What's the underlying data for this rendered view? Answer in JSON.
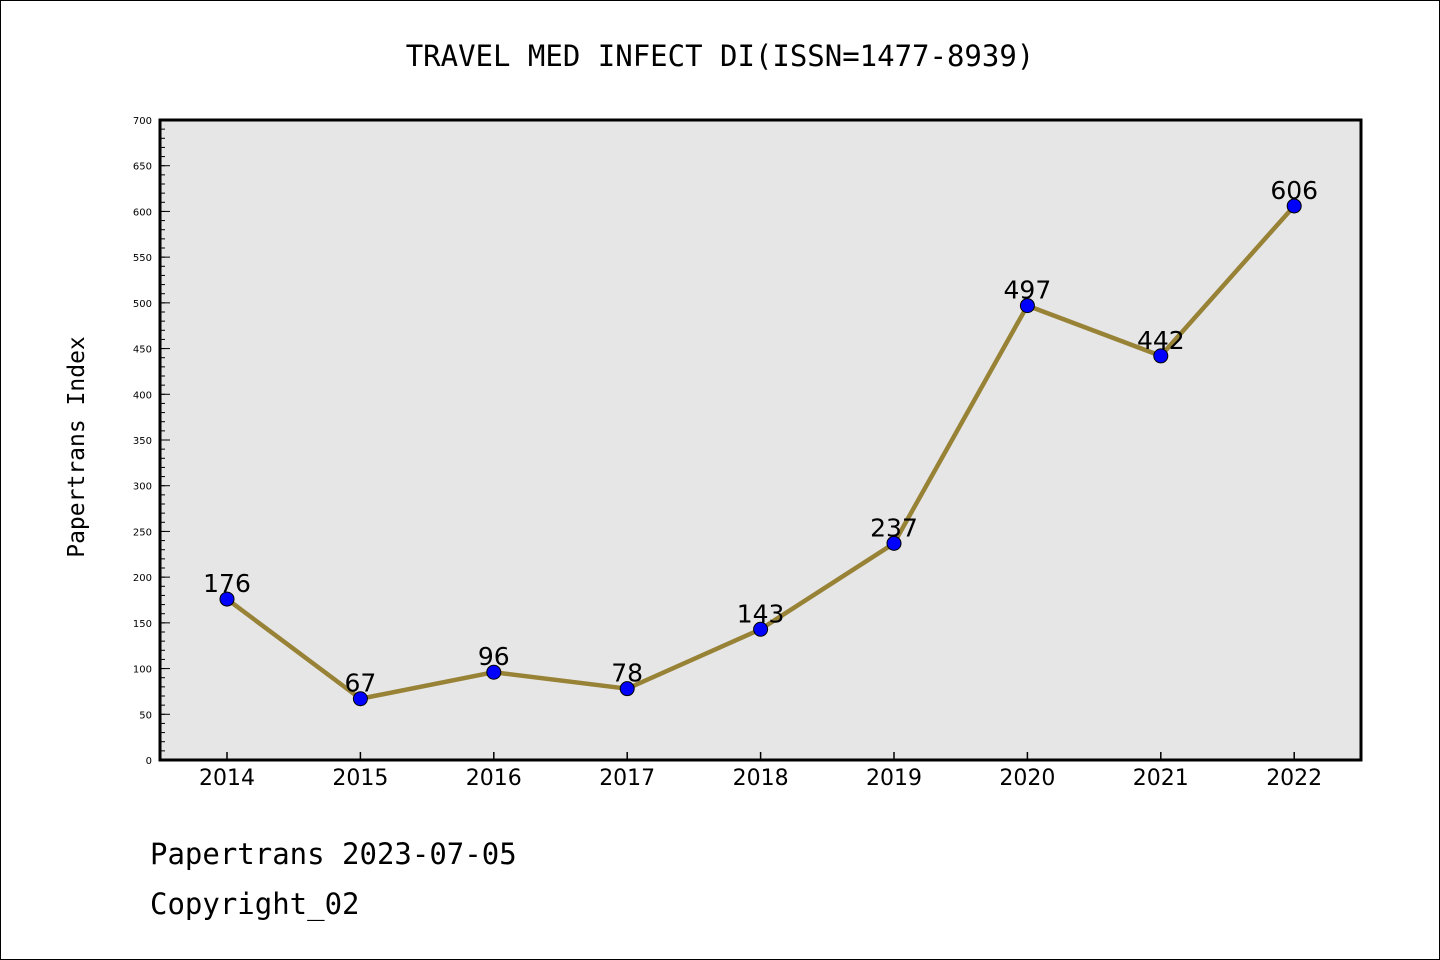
{
  "chart_data": {
    "type": "line",
    "title": "TRAVEL MED INFECT DI(ISSN=1477-8939)",
    "ylabel": "Papertrans Index",
    "xlabel": "",
    "categories": [
      "2014",
      "2015",
      "2016",
      "2017",
      "2018",
      "2019",
      "2020",
      "2021",
      "2022"
    ],
    "values": [
      176,
      67,
      96,
      78,
      143,
      237,
      497,
      442,
      606
    ],
    "ylim": [
      0,
      700
    ],
    "yticks": [
      0,
      50,
      100,
      150,
      200,
      250,
      300,
      350,
      400,
      450,
      500,
      550,
      600,
      650,
      700
    ],
    "grid": false,
    "legend": "none",
    "colors": {
      "line": "#978236",
      "marker": "#0000ff",
      "plot_background": "#e6e6e6"
    }
  },
  "footer": {
    "line1": "Papertrans 2023-07-05",
    "line2": "Copyright_02"
  }
}
